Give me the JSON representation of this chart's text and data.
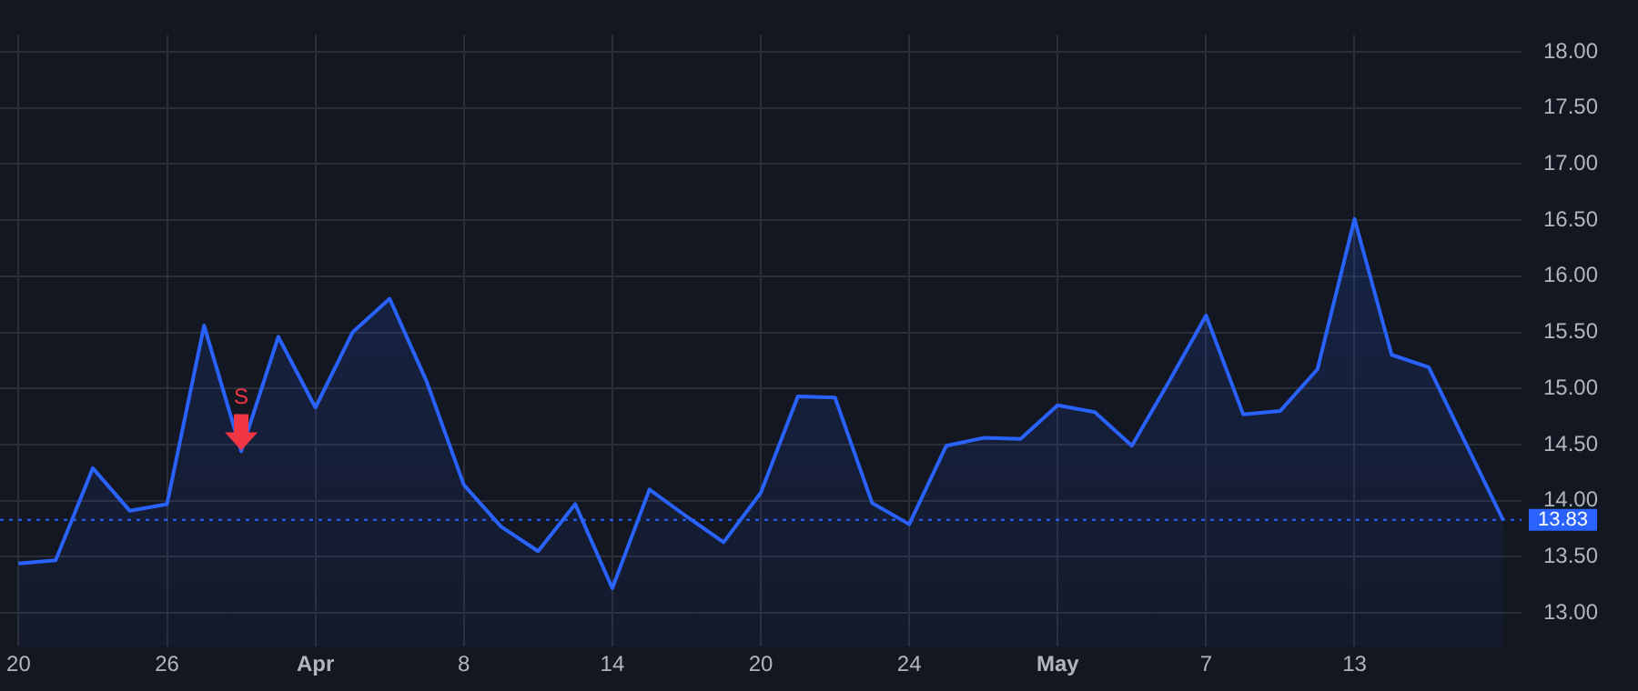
{
  "chart_data": {
    "type": "area",
    "categories": [
      "20",
      null,
      null,
      null,
      "26",
      null,
      null,
      null,
      "Apr",
      null,
      null,
      null,
      "8",
      null,
      null,
      null,
      "14",
      null,
      null,
      null,
      "20",
      null,
      null,
      null,
      "24",
      null,
      null,
      null,
      "May",
      null,
      null,
      null,
      "7",
      null,
      null,
      null,
      "13",
      null,
      null,
      null,
      null
    ],
    "series": [
      {
        "color": "#2962ff",
        "values": [
          13.44,
          13.47,
          14.29,
          13.91,
          13.97,
          15.56,
          14.44,
          15.46,
          14.83,
          15.5,
          15.8,
          15.06,
          14.14,
          13.77,
          13.55,
          13.97,
          13.22,
          14.1,
          13.86,
          13.63,
          14.07,
          14.93,
          14.92,
          13.98,
          13.79,
          14.49,
          14.56,
          14.55,
          14.85,
          14.79,
          14.49,
          15.06,
          15.65,
          14.77,
          14.8,
          15.17,
          16.51,
          15.3,
          15.19,
          14.51,
          13.83
        ]
      },
      {
        "type": "scatter",
        "color": "#f23645",
        "values": [
          null,
          null,
          null,
          null,
          null,
          null,
          14.61,
          null,
          null,
          null,
          null,
          null,
          null,
          null,
          null,
          null,
          null,
          null,
          null,
          null,
          null,
          null,
          null,
          null,
          null,
          null,
          null,
          null,
          null,
          null,
          null,
          null,
          null,
          null,
          null,
          null,
          null,
          null,
          null,
          null,
          null
        ],
        "value_labels": [
          null,
          null,
          null,
          null,
          null,
          null,
          "S",
          null,
          null,
          null,
          null,
          null,
          null,
          null,
          null,
          null,
          null,
          null,
          null,
          null,
          null,
          null,
          null,
          null,
          null,
          null,
          null,
          null,
          null,
          null,
          null,
          null,
          null,
          null,
          null,
          null,
          null,
          null,
          null,
          null,
          null
        ]
      }
    ],
    "ylim": [
      12.7,
      18.15
    ],
    "yticks": [
      {
        "value": 13,
        "label": "13.00"
      },
      {
        "value": 13.5,
        "label": "13.50"
      },
      {
        "value": 14,
        "label": "14.00"
      },
      {
        "value": 14.5,
        "label": "14.50"
      },
      {
        "value": 15,
        "label": "15.00"
      },
      {
        "value": 15.5,
        "label": "15.50"
      },
      {
        "value": 16,
        "label": "16.00"
      },
      {
        "value": 16.5,
        "label": "16.50"
      },
      {
        "value": 17,
        "label": "17.00"
      },
      {
        "value": 17.5,
        "label": "17.50"
      },
      {
        "value": 18,
        "label": "18.00"
      }
    ],
    "ref_lines": [
      {
        "axis": "y",
        "value": 13.83,
        "label": "13.83",
        "color": "#2962ff",
        "line_style": "dotted"
      }
    ],
    "grid": true,
    "legend": false,
    "line_style": "solid"
  }
}
